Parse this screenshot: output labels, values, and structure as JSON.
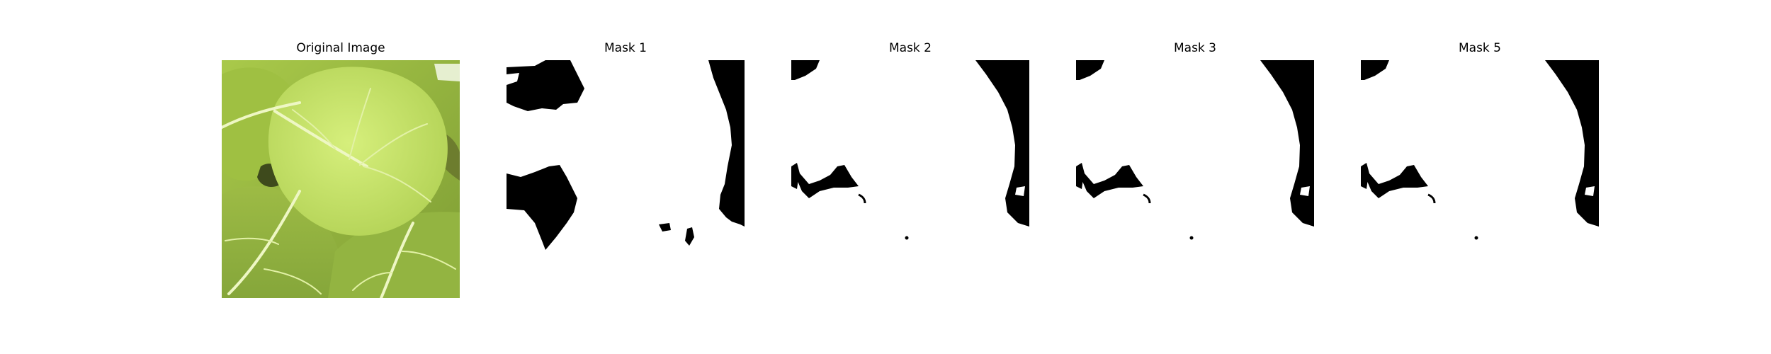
{
  "figure": {
    "panels": [
      {
        "title": "Original Image",
        "kind": "photo",
        "subject": "green leaves"
      },
      {
        "title": "Mask 1",
        "kind": "binary-mask"
      },
      {
        "title": "Mask 2",
        "kind": "binary-mask"
      },
      {
        "title": "Mask 3",
        "kind": "binary-mask"
      },
      {
        "title": "Mask 5",
        "kind": "binary-mask"
      }
    ],
    "colors": {
      "mask_foreground": "#ffffff",
      "mask_background": "#000000",
      "leaf_light": "#c8e66a",
      "leaf_dark": "#7f9c36"
    }
  }
}
